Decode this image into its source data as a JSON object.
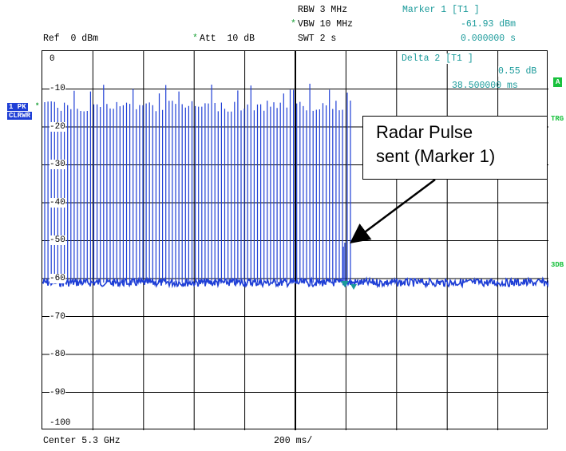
{
  "header": {
    "rbw": "RBW 3 MHz",
    "vbw": "VBW 10 MHz",
    "swt": "SWT 2 s",
    "ref": "Ref  0 dBm",
    "att": "Att  10 dB",
    "vbw_star": "*",
    "att_star": "*"
  },
  "marker1": {
    "title": "Marker 1 [T1 ]",
    "level": "-61.93 dBm",
    "time": "0.000000 s"
  },
  "delta2": {
    "title": "Delta 2 [T1 ]",
    "level": "0.55 dB",
    "time": "38.500000 ms"
  },
  "left_badges": {
    "trace": "1 PK",
    "mode": "CLRWR"
  },
  "right_badges": {
    "a": "A",
    "trg": "TRG",
    "db": "3DB"
  },
  "y_axis": {
    "ticks": [
      "0",
      "-10",
      "-20",
      "-30",
      "-40",
      "-50",
      "-60",
      "-70",
      "-80",
      "-90",
      "-100"
    ]
  },
  "footer": {
    "center": "Center 5.3 GHz",
    "span": "200 ms/"
  },
  "annotation": {
    "line1": "Radar Pulse",
    "line2": "sent (Marker 1)"
  },
  "colors": {
    "trace": "#1f3fd6",
    "marker_text": "#1a9a9a",
    "star": "#1fa23a"
  }
}
